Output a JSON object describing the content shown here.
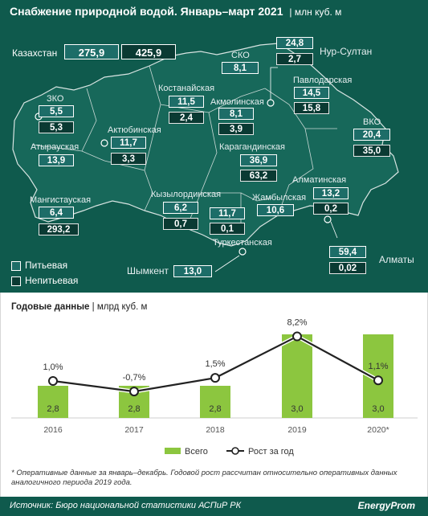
{
  "title": "Снабжение природной водой. Январь–март 2021",
  "unit": "млн куб. м",
  "colors": {
    "panel": "#0f5a4d",
    "drinking": "#1d6d68",
    "non_drinking": "#0a3a33",
    "bar": "#8cc63f",
    "line": "#ffffff"
  },
  "kazakhstan": {
    "label": "Казахстан",
    "drinking": "275,9",
    "non_drinking": "425,9"
  },
  "regions": [
    {
      "name": "ЗКО",
      "drinking": "5,5",
      "non_drinking": "5,3"
    },
    {
      "name": "Атырауская",
      "drinking": "13,9",
      "non_drinking": ""
    },
    {
      "name": "Мангистауская",
      "drinking": "6,4",
      "non_drinking": "293,2"
    },
    {
      "name": "Актюбинская",
      "drinking": "11,7",
      "non_drinking": "3,3"
    },
    {
      "name": "Костанайская",
      "drinking": "11,5",
      "non_drinking": "2,4"
    },
    {
      "name": "СКО",
      "drinking": "8,1",
      "non_drinking": ""
    },
    {
      "name": "Акмолинская",
      "drinking": "8,1",
      "non_drinking": "3,9"
    },
    {
      "name": "Нур-Султан",
      "drinking": "24,8",
      "non_drinking": "2,7"
    },
    {
      "name": "Павлодарская",
      "drinking": "14,5",
      "non_drinking": "15,8"
    },
    {
      "name": "ВКО",
      "drinking": "20,4",
      "non_drinking": "35,0"
    },
    {
      "name": "Карагандинская",
      "drinking": "36,9",
      "non_drinking": "63,2"
    },
    {
      "name": "Кызылординская",
      "drinking": "6,2",
      "non_drinking": "0,7"
    },
    {
      "name": "Туркестанская",
      "drinking": "11,7",
      "non_drinking": "0,1"
    },
    {
      "name": "Жамбылская",
      "drinking": "10,6",
      "non_drinking": ""
    },
    {
      "name": "Алматинская",
      "drinking": "13,2",
      "non_drinking": "0,2"
    },
    {
      "name": "Алматы",
      "drinking": "59,4",
      "non_drinking": "0,02"
    },
    {
      "name": "Шымкент",
      "drinking": "13,0",
      "non_drinking": ""
    }
  ],
  "legend": {
    "drinking": "Питьевая",
    "non_drinking": "Непитьевая"
  },
  "annual": {
    "title": "Годовые данные",
    "unit": "млрд куб. м",
    "legend_total": "Всего",
    "legend_growth": "Рост за год"
  },
  "chart_data": {
    "type": "bar",
    "categories": [
      "2016",
      "2017",
      "2018",
      "2019",
      "2020*"
    ],
    "series": [
      {
        "name": "Всего",
        "values": [
          2.8,
          2.8,
          2.8,
          3.0,
          3.0
        ],
        "labels": [
          "2,8",
          "2,8",
          "2,8",
          "3,0",
          "3,0"
        ]
      },
      {
        "name": "Рост за год",
        "type": "line",
        "values": [
          1.0,
          -0.7,
          1.5,
          8.2,
          1.1
        ],
        "labels": [
          "1,0%",
          "-0,7%",
          "1,5%",
          "8,2%",
          "1,1%"
        ]
      }
    ],
    "grid": false,
    "legend": "bottom"
  },
  "footnote": "* Оперативные данные за январь–декабрь. Годовой рост рассчитан относительно оперативных данных аналогичного периода 2019 года.",
  "source": "Источник: Бюро национальной статистики АСПиР РК",
  "brand": "EnergyProm"
}
